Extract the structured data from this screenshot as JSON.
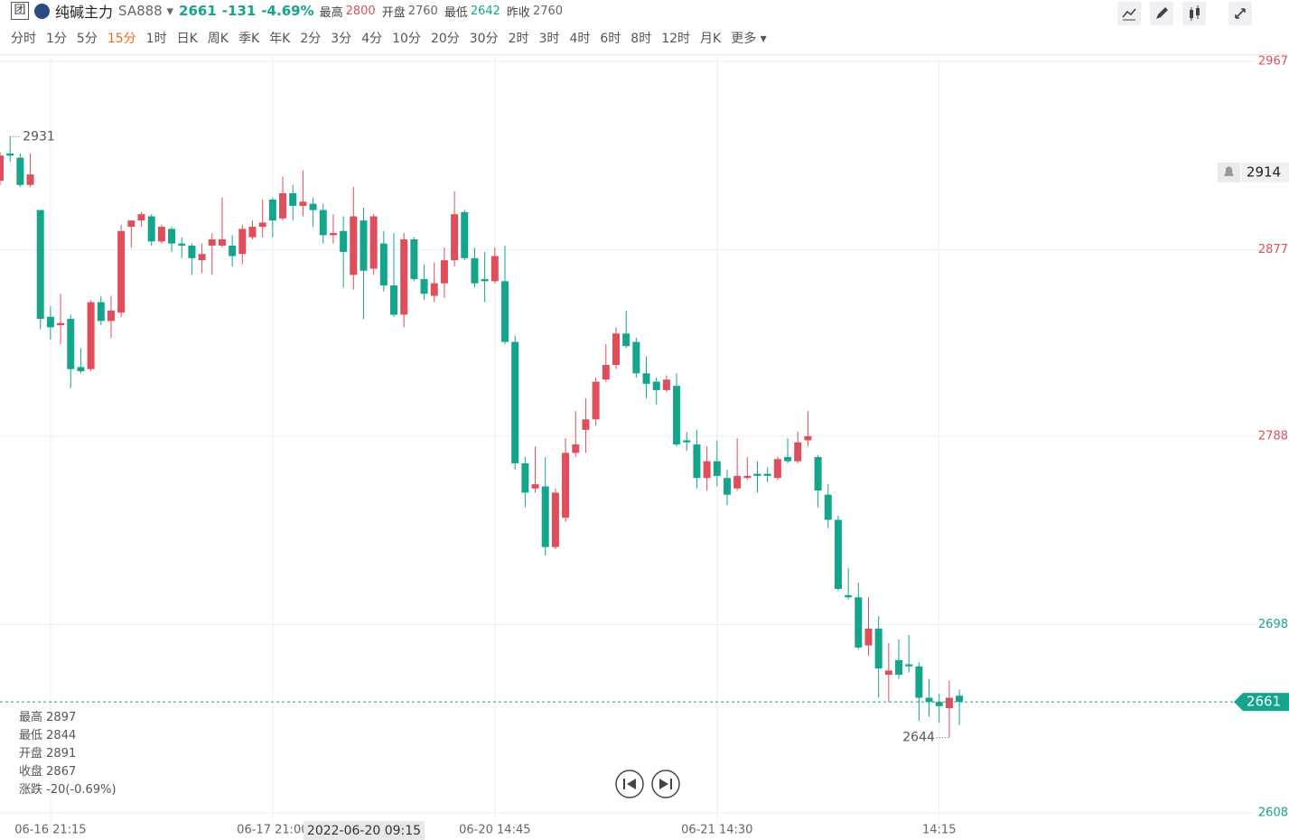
{
  "header": {
    "logo": "团",
    "name": "纯碱主力",
    "code": "SA888",
    "price": 2661,
    "change": -131,
    "change_pct": "-4.69%",
    "stats": [
      {
        "label": "最高",
        "value": 2800
      },
      {
        "label": "开盘",
        "value": 2760
      },
      {
        "label": "最低",
        "value": 2642
      },
      {
        "label": "昨收",
        "value": 2760
      }
    ]
  },
  "periods": [
    "分时",
    "1分",
    "5分",
    "15分",
    "1时",
    "日K",
    "周K",
    "季K",
    "年K",
    "2分",
    "3分",
    "4分",
    "10分",
    "20分",
    "30分",
    "2时",
    "3时",
    "4时",
    "6时",
    "8时",
    "12时",
    "月K",
    "更多"
  ],
  "active_period": "15分",
  "chart_data": {
    "type": "candlestick",
    "categories": [
      null,
      null,
      null,
      null,
      null,
      "06-16 21:15",
      null,
      null,
      null,
      null,
      null,
      null,
      null,
      null,
      null,
      null,
      null,
      null,
      null,
      null,
      null,
      null,
      null,
      null,
      null,
      null,
      null,
      "06-17 21:00",
      null,
      null,
      null,
      null,
      null,
      null,
      null,
      null,
      null,
      null,
      null,
      null,
      null,
      null,
      null,
      null,
      null,
      null,
      null,
      null,
      null,
      "06-20 14:45",
      null,
      null,
      null,
      null,
      null,
      null,
      null,
      null,
      null,
      null,
      null,
      null,
      null,
      null,
      null,
      null,
      null,
      null,
      null,
      null,
      null,
      "06-21 14:30",
      null,
      null,
      null,
      null,
      null,
      null,
      null,
      null,
      null,
      null,
      null,
      null,
      null,
      null,
      null,
      null,
      null,
      null,
      null,
      null,
      null,
      "14:15",
      null,
      null
    ],
    "open": [
      2910,
      2923,
      2921,
      2908,
      2896,
      2845,
      2841,
      2844,
      2821,
      2820,
      2852,
      2843,
      2847,
      2888,
      2891,
      2893,
      2881,
      2887,
      2880,
      2879,
      2872,
      2879,
      2879,
      2879,
      2875,
      2883,
      2888,
      2901,
      2892,
      2904,
      2898,
      2899,
      2896,
      2884,
      2886,
      2865,
      2891,
      2868,
      2880,
      2860,
      2846,
      2882,
      2863,
      2855,
      2861,
      2872,
      2895,
      2873,
      2863,
      2862,
      2862,
      2833,
      2775,
      2763,
      2764,
      2735,
      2749,
      2780,
      2791,
      2796,
      2815,
      2822,
      2837,
      2833,
      2818,
      2814,
      2810,
      2812,
      2786,
      2784,
      2768,
      2776,
      2768,
      2763,
      2768,
      2770,
      2770,
      2768,
      2778,
      2776,
      2786,
      2778,
      2760,
      2748,
      2712,
      2711,
      2688,
      2696,
      2674,
      2681,
      2679,
      2678,
      2663,
      2661,
      2658,
      2664
    ],
    "high": [
      2924,
      2931,
      2923,
      2923,
      2896,
      2850,
      2856,
      2846,
      2830,
      2853,
      2855,
      2855,
      2889,
      2891,
      2895,
      2894,
      2889,
      2888,
      2883,
      2880,
      2880,
      2885,
      2902,
      2884,
      2889,
      2891,
      2901,
      2902,
      2912,
      2908,
      2915,
      2902,
      2899,
      2894,
      2893,
      2907,
      2897,
      2894,
      2886,
      2885,
      2885,
      2883,
      2870,
      2871,
      2878,
      2905,
      2896,
      2878,
      2876,
      2878,
      2879,
      2836,
      2778,
      2783,
      2778,
      2763,
      2787,
      2800,
      2806,
      2816,
      2832,
      2840,
      2848,
      2835,
      2826,
      2816,
      2817,
      2818,
      2790,
      2791,
      2783,
      2786,
      2772,
      2787,
      2778,
      2776,
      2773,
      2778,
      2787,
      2790,
      2800,
      2779,
      2765,
      2750,
      2725,
      2718,
      2711,
      2702,
      2689,
      2691,
      2693,
      2680,
      2672,
      2665,
      2671,
      2667
    ],
    "low": [
      2908,
      2919,
      2907,
      2907,
      2839,
      2834,
      2832,
      2811,
      2818,
      2819,
      2841,
      2835,
      2845,
      2878,
      2888,
      2879,
      2880,
      2876,
      2873,
      2865,
      2866,
      2865,
      2878,
      2869,
      2870,
      2882,
      2883,
      2883,
      2891,
      2891,
      2893,
      2888,
      2880,
      2880,
      2859,
      2858,
      2844,
      2865,
      2857,
      2845,
      2840,
      2862,
      2853,
      2852,
      2854,
      2869,
      2872,
      2859,
      2852,
      2861,
      2832,
      2772,
      2754,
      2761,
      2731,
      2734,
      2747,
      2778,
      2780,
      2793,
      2814,
      2820,
      2830,
      2816,
      2806,
      2803,
      2809,
      2783,
      2781,
      2763,
      2762,
      2764,
      2755,
      2762,
      2767,
      2761,
      2766,
      2767,
      2775,
      2775,
      2783,
      2754,
      2744,
      2714,
      2710,
      2686,
      2683,
      2663,
      2661,
      2672,
      2675,
      2652,
      2654,
      2651,
      2644,
      2650
    ],
    "close": [
      2922,
      2922,
      2908,
      2913,
      2844,
      2840,
      2842,
      2820,
      2819,
      2852,
      2843,
      2848,
      2886,
      2891,
      2894,
      2881,
      2888,
      2880,
      2879,
      2873,
      2875,
      2882,
      2882,
      2874,
      2887,
      2888,
      2890,
      2891,
      2904,
      2898,
      2900,
      2896,
      2884,
      2885,
      2876,
      2893,
      2867,
      2893,
      2860,
      2846,
      2882,
      2863,
      2856,
      2861,
      2872,
      2894,
      2873,
      2861,
      2862,
      2874,
      2833,
      2775,
      2761,
      2765,
      2735,
      2761,
      2780,
      2784,
      2796,
      2814,
      2822,
      2837,
      2831,
      2818,
      2813,
      2810,
      2815,
      2784,
      2785,
      2768,
      2776,
      2769,
      2760,
      2769,
      2769,
      2769,
      2769,
      2777,
      2776,
      2785,
      2788,
      2762,
      2748,
      2715,
      2711,
      2687,
      2696,
      2677,
      2676,
      2674,
      2678,
      2663,
      2661,
      2659,
      2663,
      2661
    ],
    "up_color": "#e04d5b",
    "down_color": "#14a58c",
    "ylim": [
      2608,
      2967
    ],
    "yticks": [
      2967,
      2877,
      2788,
      2698,
      2608
    ],
    "grid": true,
    "last_price": 2661,
    "alert_price": 2914,
    "crosshair_label": "2022-06-20 09:15",
    "hover": {
      "rows": [
        {
          "label": "最高",
          "value": 2897
        },
        {
          "label": "最低",
          "value": 2844
        },
        {
          "label": "开盘",
          "value": 2891
        },
        {
          "label": "收盘",
          "value": 2867
        }
      ],
      "change_label": "涨跌",
      "change": "-20(-0.69%)"
    }
  }
}
